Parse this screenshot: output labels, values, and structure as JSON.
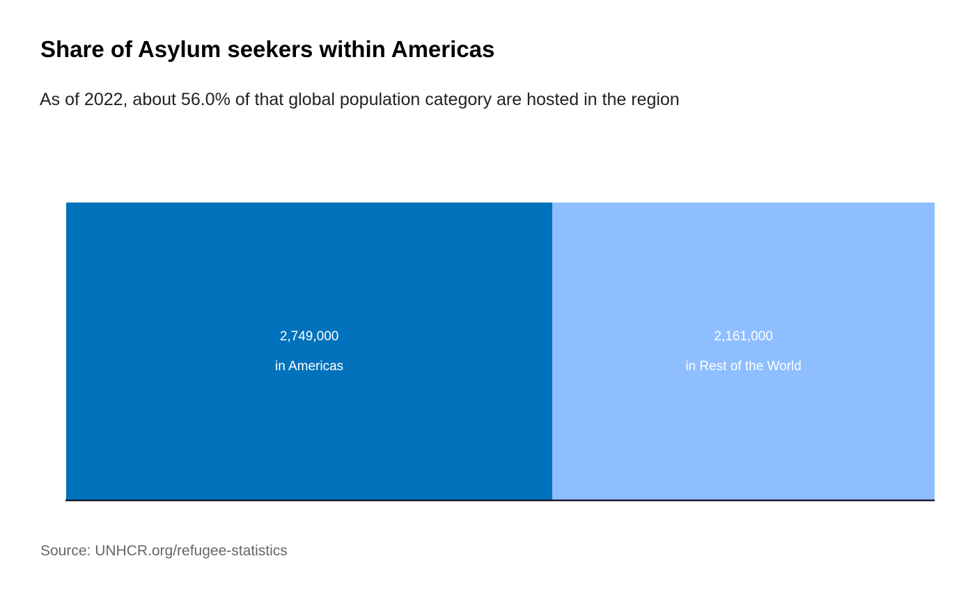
{
  "chart_data": {
    "type": "bar",
    "orientation": "horizontal",
    "stacked": true,
    "title": "Share of Asylum seekers within Americas",
    "subtitle": "As of 2022, about 56.0% of that global population category are hosted in the region",
    "source": "Source: UNHCR.org/refugee-statistics",
    "series": [
      {
        "name": "in Americas",
        "color": "#0072bc",
        "values": [
          2749000
        ],
        "value_labels": [
          "2,749,000"
        ]
      },
      {
        "name": "in Rest of the World",
        "color": "#8ebeff",
        "values": [
          2161000
        ],
        "value_labels": [
          "2,161,000"
        ]
      }
    ]
  }
}
